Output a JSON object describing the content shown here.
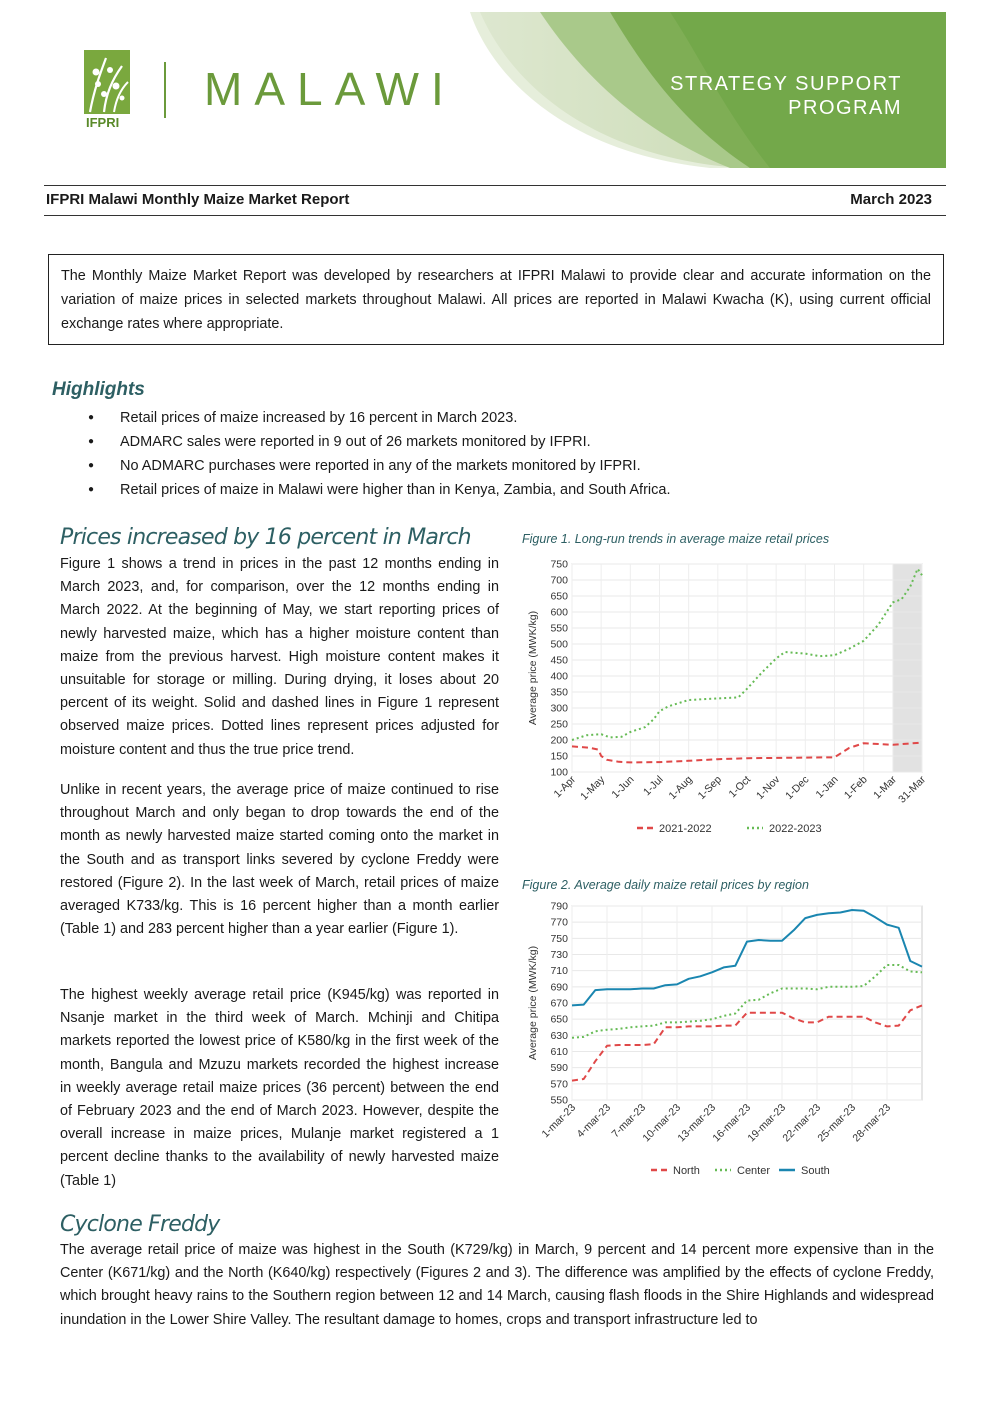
{
  "header": {
    "ifpri": "IFPRI",
    "country": "MALAWI",
    "program_line1": "STRATEGY SUPPORT",
    "program_line2": "PROGRAM",
    "report_title": "IFPRI Malawi Monthly Maize Market Report",
    "report_date": "March 2023"
  },
  "intro": "The Monthly Maize Market Report was developed by researchers at IFPRI Malawi to provide clear and accurate information on the variation of maize prices in selected markets throughout Malawi. All prices are reported in Malawi Kwacha (K), using current official exchange rates where appropriate.",
  "highlights": {
    "heading": "Highlights",
    "items": [
      "Retail prices of maize increased by 16 percent in March 2023.",
      "ADMARC sales were reported in 9 out of 26 markets monitored by IFPRI.",
      "No ADMARC purchases were reported in any of the markets monitored by IFPRI.",
      "Retail prices of maize in Malawi were higher than in Kenya, Zambia, and South Africa."
    ]
  },
  "section1": {
    "heading": "Prices increased by 16 percent in March",
    "p1": "Figure 1 shows a trend in prices in the past 12 months ending in March 2023, and, for comparison, over the 12 months ending in March 2022. At the beginning of May, we start reporting prices of newly harvested maize, which has a higher moisture content than maize from the previous harvest. High moisture content makes it unsuitable for storage or milling. During drying, it loses about 20 percent of its weight. Solid and dashed lines in Figure 1 represent observed maize prices. Dotted lines represent prices adjusted for moisture content and thus the true price trend.",
    "p2": "Unlike in recent years, the average price of maize continued to rise throughout March and only began to drop towards the end of the month as newly harvested maize started coming onto the market in the South and as transport links severed by cyclone Freddy were restored (Figure 2). In the last week of March, retail prices of maize averaged K733/kg. This is 16 percent higher than a month earlier (Table 1) and 283 percent higher than a year earlier (Figure 1).",
    "p3": "The highest weekly average retail price (K945/kg) was reported in Nsanje market in the third week of March. Mchinji and Chitipa markets reported the lowest price of K580/kg in the first week of the month, Bangula and Mzuzu markets recorded the highest increase in weekly average retail maize prices (36 percent) between the end of February 2023 and the end of March 2023. However, despite the overall increase in maize prices, Mulanje market registered a 1 percent decline thanks to the availability of newly harvested maize (Table 1)"
  },
  "section2": {
    "heading": "Cyclone Freddy",
    "p1": "The average retail price of maize was highest in the South (K729/kg) in March, 9 percent and 14 percent more expensive than in the Center (K671/kg) and the North (K640/kg) respectively (Figures 2 and 3). The difference was amplified by the effects of cyclone Freddy, which brought heavy rains to the Southern region between 12 and 14 March, causing flash floods in the Shire Highlands and widespread inundation in the Lower Shire Valley. The resultant damage to homes, crops and transport infrastructure led to"
  },
  "colors": {
    "accent": "#2d5f63",
    "brand_green": "#6b9a3b",
    "red_series": "#e04848",
    "green_series": "#66bb55",
    "blue_series": "#1a86b0"
  },
  "chart_data": [
    {
      "type": "line",
      "title": "Figure 1. Long-run trends in average maize retail prices",
      "ylabel": "Average price (MWK/kg)",
      "ylim": [
        100,
        750
      ],
      "yticks": [
        750,
        700,
        650,
        600,
        550,
        500,
        450,
        400,
        350,
        300,
        250,
        200,
        150,
        100
      ],
      "xticks": [
        "1-Apr",
        "1-May",
        "1-Jun",
        "1-Jul",
        "1-Aug",
        "1-Sep",
        "1-Oct",
        "1-Nov",
        "1-Dec",
        "1-Jan",
        "1-Feb",
        "1-Mar",
        "31-Mar"
      ],
      "series": [
        {
          "name": "2021-2022",
          "x": [
            0,
            0.6,
            0.9,
            1.0,
            1.2,
            1.6,
            2.0,
            3.0,
            4.0,
            5.0,
            6.0,
            7.0,
            8.0,
            9.0,
            9.5,
            10.0,
            11.0,
            12.0
          ],
          "values": [
            180,
            176,
            170,
            150,
            138,
            132,
            130,
            131,
            135,
            140,
            143,
            144,
            145,
            146,
            175,
            190,
            185,
            192
          ]
        },
        {
          "name": "2022-2023",
          "x": [
            0,
            0.5,
            1.0,
            1.3,
            1.7,
            2.0,
            2.5,
            2.8,
            3.0,
            3.3,
            4.0,
            5.0,
            5.7,
            6.0,
            6.5,
            7.0,
            7.3,
            8.0,
            8.5,
            9.0,
            9.5,
            10.0,
            10.5,
            11.0,
            11.3,
            11.6,
            11.85,
            12.0
          ],
          "values": [
            200,
            215,
            218,
            208,
            210,
            225,
            240,
            265,
            290,
            305,
            325,
            330,
            333,
            360,
            410,
            455,
            475,
            470,
            462,
            465,
            485,
            510,
            560,
            630,
            640,
            680,
            735,
            715
          ]
        }
      ],
      "shaded_x": [
        11,
        12
      ],
      "legend": "bottom"
    },
    {
      "type": "line",
      "title": "Figure 2. Average daily maize retail prices by region",
      "ylabel": "Average price (MWK/kg)",
      "ylim": [
        550,
        790
      ],
      "yticks": [
        790,
        770,
        750,
        730,
        710,
        690,
        670,
        650,
        630,
        610,
        590,
        570,
        550
      ],
      "xticks": [
        "1-mar-23",
        "4-mar-23",
        "7-mar-23",
        "10-mar-23",
        "13-mar-23",
        "16-mar-23",
        "19-mar-23",
        "22-mar-23",
        "25-mar-23",
        "28-mar-23"
      ],
      "x": [
        1,
        2,
        3,
        4,
        5,
        6,
        7,
        8,
        9,
        10,
        11,
        12,
        13,
        14,
        15,
        16,
        17,
        18,
        19,
        20,
        21,
        22,
        23,
        24,
        25,
        26,
        27,
        28,
        29,
        30,
        31
      ],
      "series": [
        {
          "name": "North",
          "values": [
            574,
            576,
            598,
            617,
            618,
            618,
            618,
            619,
            640,
            640,
            641,
            641,
            641,
            642,
            642,
            658,
            658,
            658,
            658,
            651,
            646,
            646,
            653,
            653,
            653,
            653,
            646,
            641,
            642,
            661,
            667
          ]
        },
        {
          "name": "Center",
          "values": [
            627,
            628,
            635,
            637,
            638,
            640,
            641,
            642,
            646,
            646,
            647,
            648,
            650,
            654,
            657,
            673,
            674,
            682,
            688,
            688,
            688,
            687,
            690,
            690,
            690,
            691,
            703,
            717,
            717,
            709,
            708
          ]
        },
        {
          "name": "South",
          "values": [
            667,
            668,
            686,
            687,
            687,
            687,
            688,
            688,
            692,
            693,
            700,
            703,
            708,
            714,
            716,
            746,
            748,
            747,
            747,
            760,
            775,
            779,
            781,
            782,
            785,
            784,
            776,
            767,
            763,
            722,
            715
          ]
        }
      ],
      "legend": "bottom"
    }
  ]
}
